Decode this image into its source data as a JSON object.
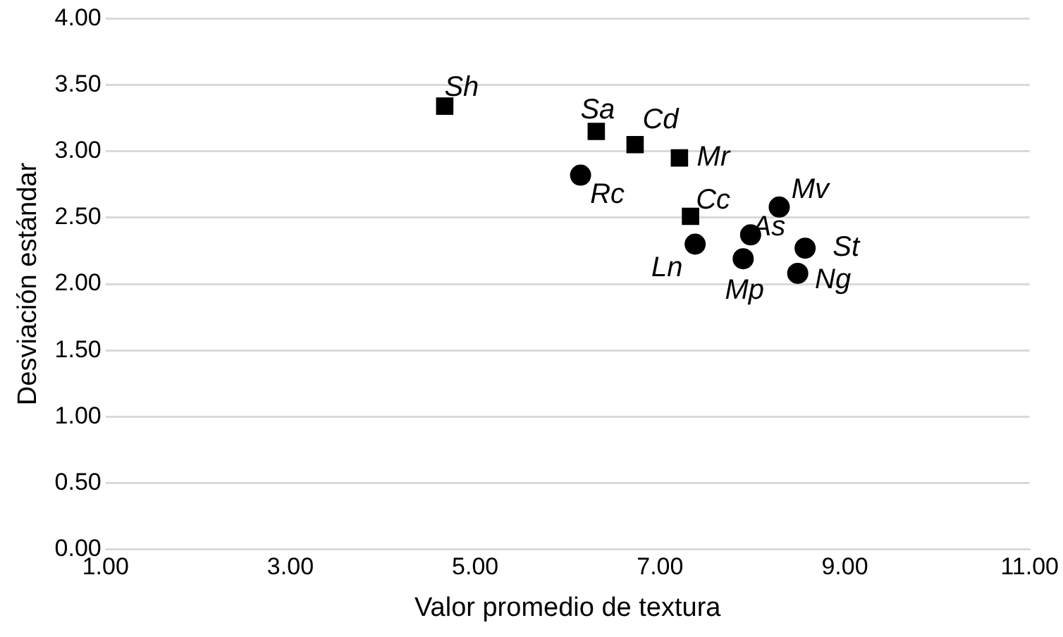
{
  "chart_data": {
    "type": "scatter",
    "xlabel": "Valor promedio de textura",
    "ylabel": "Desviación estándar",
    "series": [
      {
        "color": "#000000",
        "marker": "square",
        "x": [
          4.67,
          6.31,
          6.73,
          7.21,
          7.33
        ],
        "values": [
          3.34,
          3.15,
          3.05,
          2.95,
          2.51
        ]
      },
      {
        "color": "#000000",
        "marker": "circle",
        "x": [
          6.14,
          8.29,
          7.98,
          7.38,
          7.9,
          8.57,
          8.49
        ],
        "values": [
          2.82,
          2.58,
          2.37,
          2.3,
          2.19,
          2.27,
          2.08
        ]
      }
    ],
    "annotations": [
      {
        "text": "Sh",
        "x": 4.67,
        "y": 3.34
      },
      {
        "text": "Sa",
        "x": 6.31,
        "y": 3.15
      },
      {
        "text": "Cd",
        "x": 6.73,
        "y": 3.05
      },
      {
        "text": "Mr",
        "x": 7.21,
        "y": 2.95
      },
      {
        "text": "Cc",
        "x": 7.33,
        "y": 2.51
      },
      {
        "text": "Rc",
        "x": 6.14,
        "y": 2.82
      },
      {
        "text": "Mv",
        "x": 8.29,
        "y": 2.58
      },
      {
        "text": "As",
        "x": 7.98,
        "y": 2.37
      },
      {
        "text": "Ln",
        "x": 7.38,
        "y": 2.3
      },
      {
        "text": "Mp",
        "x": 7.9,
        "y": 2.19
      },
      {
        "text": "St",
        "x": 8.57,
        "y": 2.27
      },
      {
        "text": "Ng",
        "x": 8.49,
        "y": 2.08
      }
    ],
    "xlim": [
      1,
      11
    ],
    "xticks": [
      {
        "value": 1,
        "label": "1.00"
      },
      {
        "value": 3,
        "label": "3.00"
      },
      {
        "value": 5,
        "label": "5.00"
      },
      {
        "value": 7,
        "label": "7.00"
      },
      {
        "value": 9,
        "label": "9.00"
      },
      {
        "value": 11,
        "label": "11.00"
      }
    ],
    "ylim": [
      0,
      4
    ],
    "yticks": [
      {
        "value": 0,
        "label": "0.00"
      },
      {
        "value": 0.5,
        "label": "0.50"
      },
      {
        "value": 1,
        "label": "1.00"
      },
      {
        "value": 1.5,
        "label": "1.50"
      },
      {
        "value": 2,
        "label": "2.00"
      },
      {
        "value": 2.5,
        "label": "2.50"
      },
      {
        "value": 3,
        "label": "3.00"
      },
      {
        "value": 3.5,
        "label": "3.50"
      },
      {
        "value": 4,
        "label": "4.00"
      }
    ],
    "grid": "y",
    "legend": false
  }
}
